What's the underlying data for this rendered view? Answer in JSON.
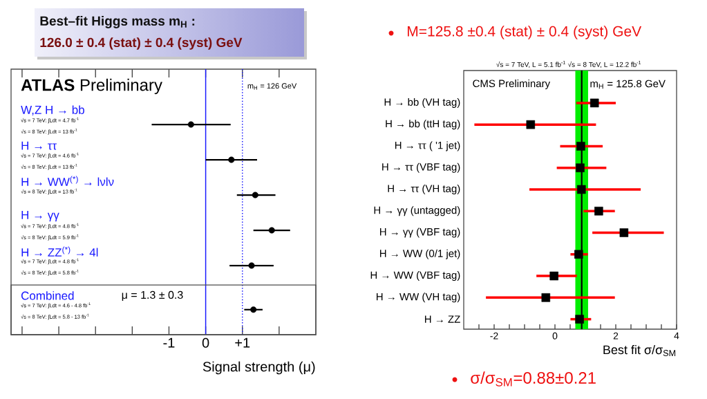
{
  "chart_data": [
    {
      "type": "scatter",
      "orientation": "horizontal",
      "title": "Best–fit  Higgs mass m$_{H}$ :",
      "subtitle": "126.0 ± 0.4 (stat) ± 0.4 (syst) GeV",
      "xlabel": "Signal strength (μ)",
      "categories": [
        "W,Z H → bb",
        "H → ττ",
        "H → WW$^{(*)}$ → lνlν",
        "H → γγ",
        "H → ZZ$^{(*)}$ → 4l",
        "Combined"
      ],
      "values": [
        -0.4,
        0.7,
        1.35,
        1.8,
        1.25,
        1.3
      ],
      "errors": [
        [
          -1.47,
          0.68
        ],
        [
          0.0,
          1.4
        ],
        [
          0.85,
          1.9
        ],
        [
          1.3,
          2.3
        ],
        [
          0.65,
          1.85
        ],
        [
          1.05,
          1.55
        ]
      ],
      "color": "#000000",
      "marker": "circle",
      "xlim": [
        -5.3,
        3.0
      ],
      "xticks": [
        {
          "value": -5,
          "label": null
        },
        {
          "value": -4,
          "label": null
        },
        {
          "value": -3,
          "label": null
        },
        {
          "value": -2,
          "label": null
        },
        -1,
        0,
        {
          "value": 1,
          "label": "+1"
        },
        {
          "value": 2,
          "label": null
        }
      ],
      "ref_lines": [
        {
          "axis": "x",
          "value": 0,
          "color": "#1a1aff",
          "line_style": "solid"
        },
        {
          "axis": "x",
          "value": 1,
          "color": "#1a1aff",
          "line_style": "dotted"
        }
      ],
      "annotations": [
        "**ATLAS** Preliminary",
        "m$_{H}$ = 126 GeV",
        "μ = 1.3 ± 0.3",
        "√s = 7 TeV: ∫Ldt = 4.7 fb$^{-1}$",
        "√s = 8 TeV: ∫Ldt = 13 fb$^{-1}$",
        "√s = 7 TeV: ∫Ldt = 4.6 fb$^{-1}$",
        "√s = 8 TeV: ∫Ldt = 13 fb$^{-1}$",
        "√s = 8 TeV: ∫Ldt = 13 fb$^{-1}$",
        "√s = 7 TeV: ∫Ldt = 4.8 fb$^{-1}$",
        "√s = 8 TeV: ∫Ldt = 5.9 fb$^{-1}$",
        "√s = 7 TeV: ∫Ldt = 4.8 fb$^{-1}$",
        "√s = 8 TeV: ∫Ldt = 5.8 fb$^{-1}$",
        "√s = 7 TeV: ∫Ldt = 4.6 - 4.8 fb$^{-1}$",
        "√s = 8 TeV: ∫Ldt = 5.8 - 13 fb$^{-1}$"
      ]
    },
    {
      "type": "scatter",
      "orientation": "horizontal",
      "title": "M=125.8 ±0.4 (stat) ± 0.4 (syst) GeV",
      "subtitle": "√s = 7 TeV, L =   5.1 fb$^{-1}$  √s = 8 TeV, L = 12.2 fb$^{-1}$",
      "xlabel": "Best fit σ/σ$_{SM}$",
      "categories": [
        "H → bb (VH tag)",
        "H → bb (ttH tag)",
        "H → ττ (   '1 jet)",
        "H → ττ (VBF tag)",
        "H → ττ (VH tag)",
        "H → γγ (untagged)",
        "H → γγ (VBF tag)",
        "H → WW (0/1 jet)",
        "H → WW (VBF tag)",
        "H → WW (VH tag)",
        "H → ZZ"
      ],
      "values": [
        1.3,
        -0.8,
        0.85,
        0.83,
        0.87,
        1.44,
        2.27,
        0.78,
        -0.03,
        -0.3,
        0.81
      ],
      "errors": [
        [
          0.7,
          2.0
        ],
        [
          -2.65,
          1.35
        ],
        [
          0.17,
          1.57
        ],
        [
          0.06,
          1.69
        ],
        [
          -0.84,
          2.82
        ],
        [
          0.94,
          1.97
        ],
        [
          1.23,
          3.58
        ],
        [
          0.51,
          1.08
        ],
        [
          -0.61,
          0.72
        ],
        [
          -2.27,
          1.97
        ],
        [
          0.51,
          1.19
        ]
      ],
      "color": "#000000",
      "marker": "square",
      "xlim": [
        -3,
        4
      ],
      "xticks": [
        {
          "value": -2.5,
          "label": null
        },
        -2,
        {
          "value": -1.5,
          "label": null
        },
        {
          "value": -1,
          "label": null
        },
        {
          "value": -0.5,
          "label": null
        },
        0,
        {
          "value": 0.5,
          "label": null
        },
        {
          "value": 1,
          "label": null
        },
        {
          "value": 1.5,
          "label": null
        },
        2,
        {
          "value": 2.5,
          "label": null
        },
        {
          "value": 3,
          "label": null
        },
        {
          "value": 3.5,
          "label": null
        },
        4
      ],
      "bands": [
        {
          "axis": "x",
          "from": 0.67,
          "to": 1.09,
          "color": "#00ee00"
        }
      ],
      "ref_lines": [
        {
          "axis": "x",
          "value": 0.88,
          "color": "#000000",
          "line_style": "solid"
        }
      ],
      "annotations": [
        "CMS Preliminary",
        "m$_{H}$ = 125.8 GeV",
        "σ/σ$_{SM}$=0.88±0.21"
      ]
    }
  ]
}
